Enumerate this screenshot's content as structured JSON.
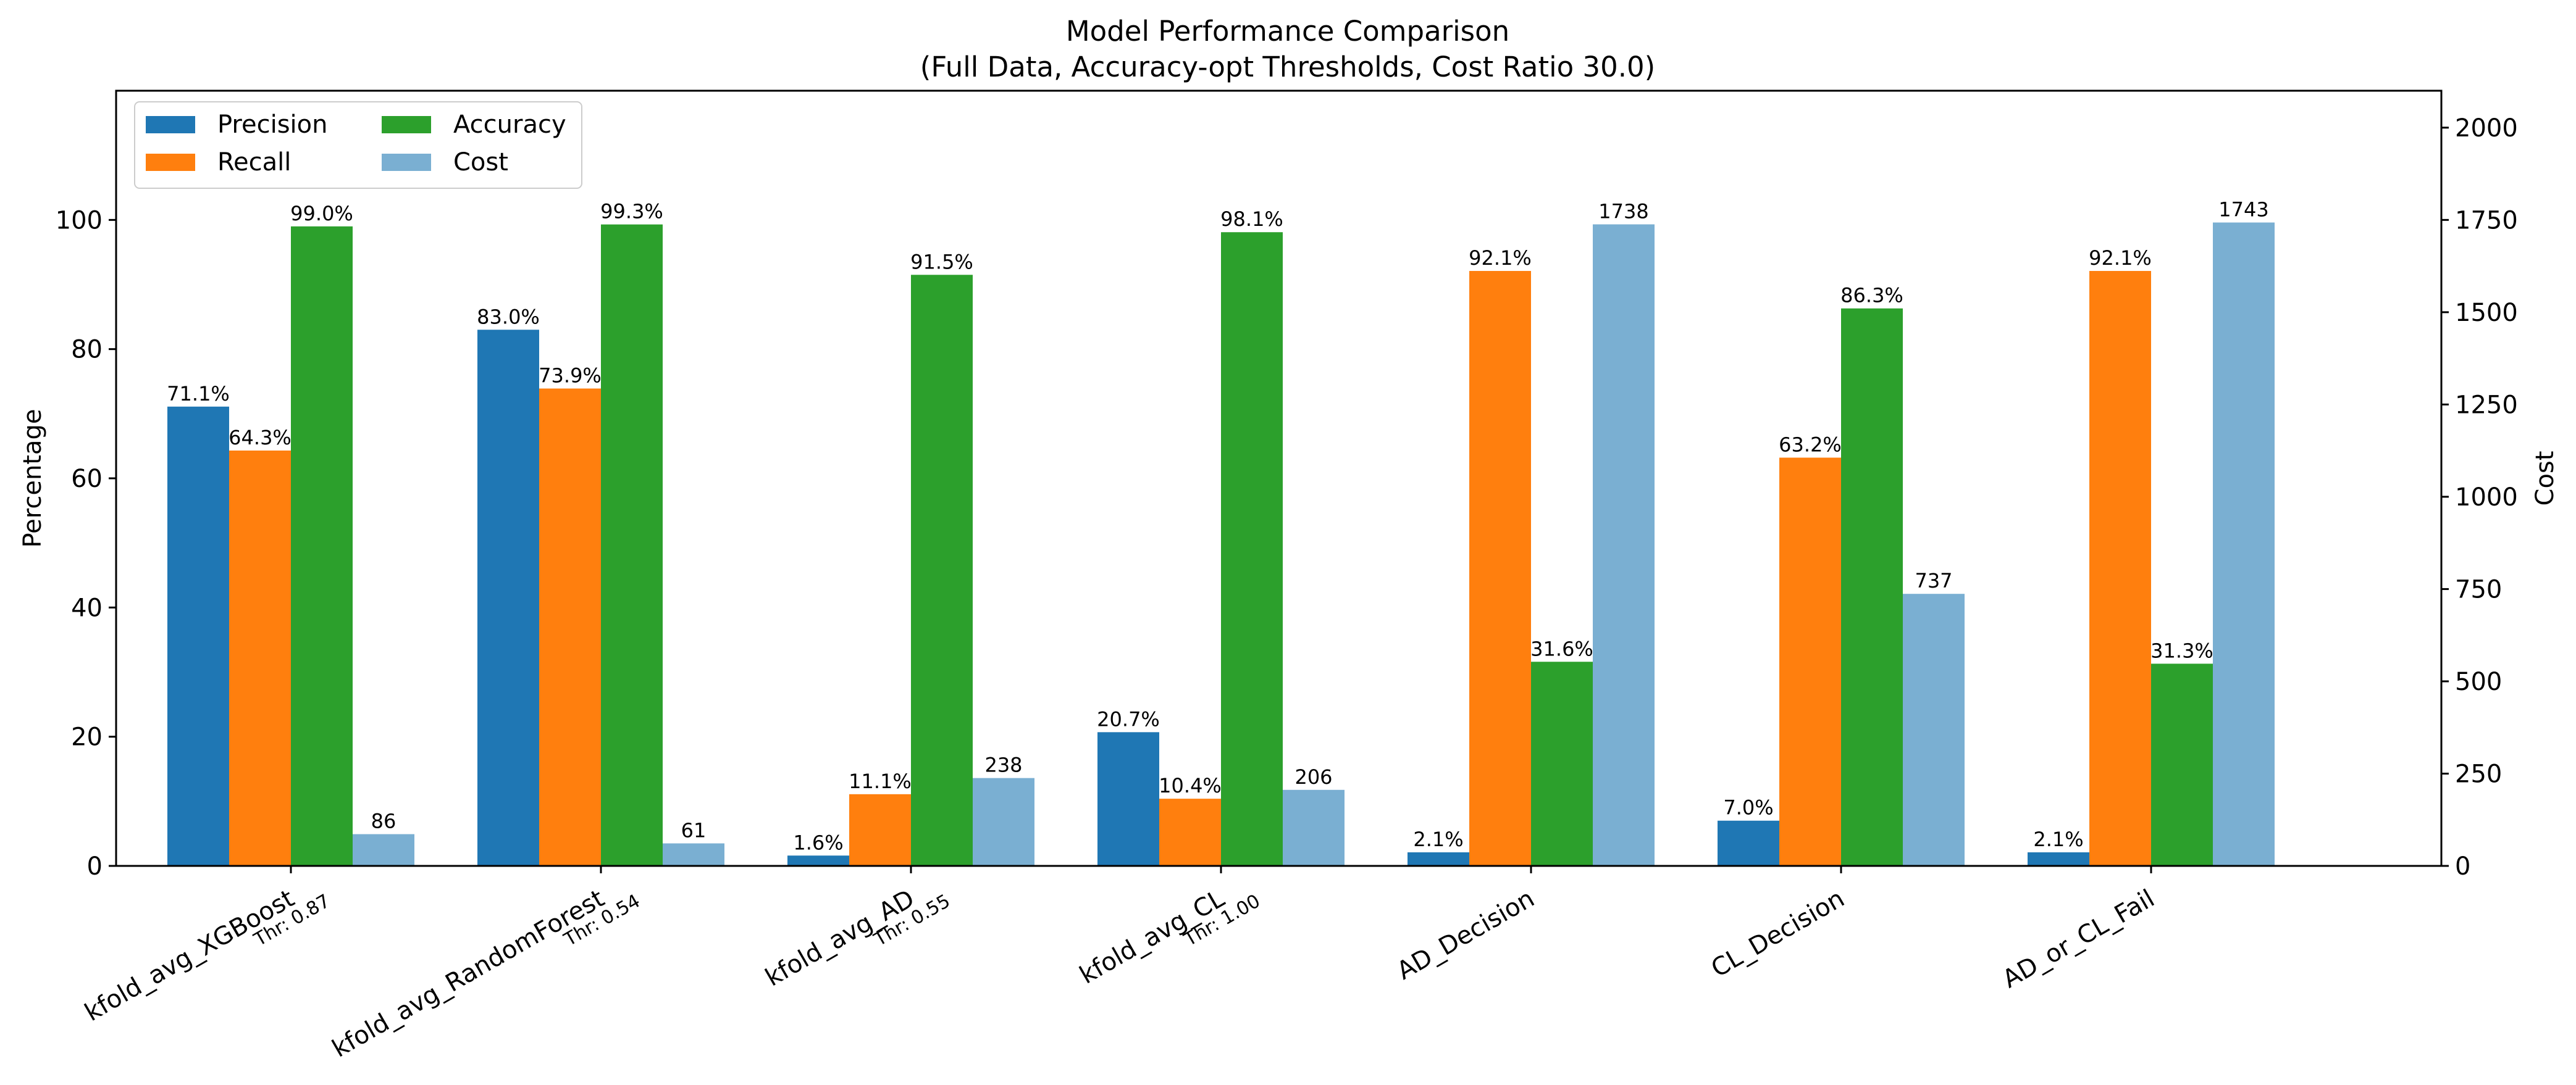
{
  "chart_data": {
    "type": "bar",
    "title": "Model Performance Comparison",
    "subtitle": "(Full Data, Accuracy-opt Thresholds, Cost Ratio 30.0)",
    "ylabel": "Percentage",
    "y2label": "Cost",
    "ylim": [
      0,
      120
    ],
    "y2lim": [
      0,
      2100
    ],
    "yticks": [
      0,
      20,
      40,
      60,
      80,
      100
    ],
    "y2ticks": [
      0,
      250,
      500,
      750,
      1000,
      1250,
      1500,
      1750,
      2000
    ],
    "legend_position": "top-left",
    "grid": false,
    "categories": [
      "kfold_avg_XGBoost",
      "kfold_avg_RandomForest",
      "kfold_avg_AD",
      "kfold_avg_CL",
      "AD_Decision",
      "CL_Decision",
      "AD_or_CL_Fail"
    ],
    "thresholds": [
      "Thr: 0.87",
      "Thr: 0.54",
      "Thr: 0.55",
      "Thr: 1.00",
      "",
      "",
      ""
    ],
    "series": [
      {
        "name": "Precision",
        "axis": "left",
        "color": "#1f77b4",
        "values": [
          71.1,
          83.0,
          1.6,
          20.7,
          2.1,
          7.0,
          2.1
        ],
        "labels": [
          "71.1%",
          "83.0%",
          "1.6%",
          "20.7%",
          "2.1%",
          "7.0%",
          "2.1%"
        ]
      },
      {
        "name": "Recall",
        "axis": "left",
        "color": "#ff7f0e",
        "values": [
          64.3,
          73.9,
          11.1,
          10.4,
          92.1,
          63.2,
          92.1
        ],
        "labels": [
          "64.3%",
          "73.9%",
          "11.1%",
          "10.4%",
          "92.1%",
          "63.2%",
          "92.1%"
        ]
      },
      {
        "name": "Accuracy",
        "axis": "left",
        "color": "#2ca02c",
        "values": [
          99.0,
          99.3,
          91.5,
          98.1,
          31.6,
          86.3,
          31.3
        ],
        "labels": [
          "99.0%",
          "99.3%",
          "91.5%",
          "98.1%",
          "31.6%",
          "86.3%",
          "31.3%"
        ]
      },
      {
        "name": "Cost",
        "axis": "right",
        "color": "#7aafd2",
        "values": [
          86,
          61,
          238,
          206,
          1738,
          737,
          1743
        ],
        "labels": [
          "86",
          "61",
          "238",
          "206",
          "1738",
          "737",
          "1743"
        ]
      }
    ]
  }
}
